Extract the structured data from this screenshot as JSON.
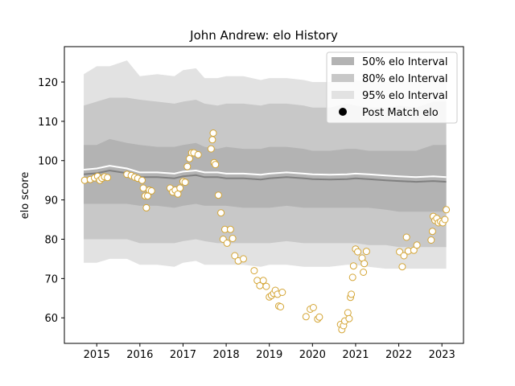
{
  "chart_data": {
    "type": "line",
    "title": "John Andrew: elo History",
    "xlabel": "",
    "ylabel": "elo score",
    "xlim": [
      2014.25,
      2023.5
    ],
    "ylim": [
      53.5,
      129
    ],
    "xticks": [
      2015,
      2016,
      2017,
      2018,
      2019,
      2020,
      2021,
      2022,
      2023
    ],
    "yticks": [
      60,
      70,
      80,
      90,
      100,
      110,
      120
    ],
    "grid": false,
    "legend_position": "top-right",
    "legend": [
      {
        "label": "50% elo Interval",
        "kind": "band",
        "color": "#b3b3b3"
      },
      {
        "label": "80% elo Interval",
        "kind": "band",
        "color": "#c8c8c8"
      },
      {
        "label": "95% elo Interval",
        "kind": "band",
        "color": "#e2e2e2"
      },
      {
        "label": "Post Match elo",
        "kind": "marker",
        "color": "#000000"
      }
    ],
    "colors": {
      "band50": "#b3b3b3",
      "band80": "#c8c8c8",
      "band95": "#e2e2e2",
      "mean_line": "#808080",
      "overlay_line": "#ffffff",
      "marker_edge": "#d4a535",
      "marker_face": "#ffffff"
    },
    "bands": {
      "x": [
        2014.7,
        2015.0,
        2015.3,
        2015.7,
        2016.0,
        2016.4,
        2016.8,
        2017.0,
        2017.3,
        2017.5,
        2017.8,
        2018.0,
        2018.4,
        2018.8,
        2019.0,
        2019.4,
        2019.8,
        2020.0,
        2020.4,
        2020.8,
        2021.0,
        2021.3,
        2021.7,
        2022.0,
        2022.4,
        2022.8,
        2023.1
      ],
      "mean": [
        96.5,
        96.8,
        97.5,
        96.8,
        95.8,
        95.8,
        95.5,
        96.0,
        96.3,
        95.8,
        95.8,
        95.5,
        95.5,
        95.2,
        95.5,
        95.8,
        95.5,
        95.3,
        95.2,
        95.3,
        95.5,
        95.3,
        95.0,
        94.8,
        94.6,
        94.8,
        94.6
      ],
      "p50": [
        [
          89,
          104
        ],
        [
          89,
          104
        ],
        [
          89,
          105.5
        ],
        [
          89,
          104.5
        ],
        [
          88.5,
          104
        ],
        [
          88.5,
          103.5
        ],
        [
          88,
          103.5
        ],
        [
          88.5,
          104
        ],
        [
          89,
          104.5
        ],
        [
          88.5,
          103.5
        ],
        [
          88.5,
          103
        ],
        [
          88.5,
          103.5
        ],
        [
          88,
          103
        ],
        [
          88,
          103
        ],
        [
          88,
          103.5
        ],
        [
          88.5,
          103.5
        ],
        [
          88,
          103
        ],
        [
          88,
          102.5
        ],
        [
          88,
          102.5
        ],
        [
          88,
          103
        ],
        [
          88,
          103
        ],
        [
          88,
          102.5
        ],
        [
          87.5,
          102.5
        ],
        [
          87,
          102.5
        ],
        [
          87,
          102.5
        ],
        [
          87,
          104
        ],
        [
          87,
          104
        ]
      ],
      "p80": [
        [
          80,
          114
        ],
        [
          80,
          115
        ],
        [
          80,
          116
        ],
        [
          80,
          116
        ],
        [
          79,
          115.5
        ],
        [
          79,
          115
        ],
        [
          79,
          114.5
        ],
        [
          79.5,
          115
        ],
        [
          80,
          115.5
        ],
        [
          79.5,
          114.5
        ],
        [
          79,
          114
        ],
        [
          79,
          114.5
        ],
        [
          79,
          114.5
        ],
        [
          79,
          114
        ],
        [
          79,
          114.5
        ],
        [
          79.5,
          114.5
        ],
        [
          79,
          114
        ],
        [
          79,
          113.5
        ],
        [
          79,
          113.5
        ],
        [
          79,
          114.5
        ],
        [
          79,
          114
        ],
        [
          78.5,
          113.5
        ],
        [
          78.5,
          113.5
        ],
        [
          78,
          114
        ],
        [
          78,
          113.5
        ],
        [
          78,
          115
        ],
        [
          78,
          115
        ]
      ],
      "p95": [
        [
          74,
          122
        ],
        [
          74,
          124
        ],
        [
          75,
          124
        ],
        [
          75,
          125.5
        ],
        [
          73.5,
          121.5
        ],
        [
          73.5,
          122
        ],
        [
          73,
          121.5
        ],
        [
          74,
          123
        ],
        [
          74.5,
          123.5
        ],
        [
          73.5,
          121
        ],
        [
          73.5,
          121
        ],
        [
          73.5,
          121.5
        ],
        [
          73.5,
          121.5
        ],
        [
          73,
          120.5
        ],
        [
          73.5,
          121
        ],
        [
          73.5,
          121
        ],
        [
          73,
          120.5
        ],
        [
          73,
          120
        ],
        [
          73,
          120
        ],
        [
          73.5,
          120.5
        ],
        [
          73.5,
          120.5
        ],
        [
          73,
          120
        ],
        [
          72.5,
          120
        ],
        [
          72.5,
          120.5
        ],
        [
          72.5,
          120
        ],
        [
          72.5,
          121.5
        ],
        [
          72.5,
          122
        ]
      ]
    },
    "points": [
      {
        "x": 2014.72,
        "y": 95.0
      },
      {
        "x": 2014.85,
        "y": 95.2
      },
      {
        "x": 2014.95,
        "y": 95.6
      },
      {
        "x": 2015.02,
        "y": 96.0
      },
      {
        "x": 2015.07,
        "y": 95.0
      },
      {
        "x": 2015.12,
        "y": 95.5
      },
      {
        "x": 2015.18,
        "y": 95.9
      },
      {
        "x": 2015.25,
        "y": 95.7
      },
      {
        "x": 2015.7,
        "y": 96.5
      },
      {
        "x": 2015.8,
        "y": 96.2
      },
      {
        "x": 2015.88,
        "y": 95.8
      },
      {
        "x": 2015.95,
        "y": 95.5
      },
      {
        "x": 2016.05,
        "y": 95.0
      },
      {
        "x": 2016.08,
        "y": 93.0
      },
      {
        "x": 2016.12,
        "y": 91.0
      },
      {
        "x": 2016.15,
        "y": 88.0
      },
      {
        "x": 2016.18,
        "y": 91.0
      },
      {
        "x": 2016.22,
        "y": 92.5
      },
      {
        "x": 2016.27,
        "y": 92.3
      },
      {
        "x": 2016.7,
        "y": 93.0
      },
      {
        "x": 2016.76,
        "y": 92.0
      },
      {
        "x": 2016.82,
        "y": 92.5
      },
      {
        "x": 2016.88,
        "y": 91.5
      },
      {
        "x": 2016.93,
        "y": 93.0
      },
      {
        "x": 2017.0,
        "y": 94.7
      },
      {
        "x": 2017.05,
        "y": 94.5
      },
      {
        "x": 2017.1,
        "y": 98.5
      },
      {
        "x": 2017.15,
        "y": 100.5
      },
      {
        "x": 2017.2,
        "y": 102.0
      },
      {
        "x": 2017.25,
        "y": 102.0
      },
      {
        "x": 2017.35,
        "y": 101.5
      },
      {
        "x": 2017.65,
        "y": 103.0
      },
      {
        "x": 2017.68,
        "y": 105.3
      },
      {
        "x": 2017.7,
        "y": 107.0
      },
      {
        "x": 2017.72,
        "y": 99.5
      },
      {
        "x": 2017.75,
        "y": 99.0
      },
      {
        "x": 2017.82,
        "y": 91.2
      },
      {
        "x": 2017.88,
        "y": 86.7
      },
      {
        "x": 2017.93,
        "y": 80.0
      },
      {
        "x": 2017.97,
        "y": 82.5
      },
      {
        "x": 2018.02,
        "y": 79.0
      },
      {
        "x": 2018.1,
        "y": 82.5
      },
      {
        "x": 2018.15,
        "y": 80.2
      },
      {
        "x": 2018.2,
        "y": 75.8
      },
      {
        "x": 2018.28,
        "y": 74.5
      },
      {
        "x": 2018.4,
        "y": 75.0
      },
      {
        "x": 2018.65,
        "y": 72.0
      },
      {
        "x": 2018.72,
        "y": 69.5
      },
      {
        "x": 2018.78,
        "y": 68.2
      },
      {
        "x": 2018.86,
        "y": 69.5
      },
      {
        "x": 2018.93,
        "y": 68.0
      },
      {
        "x": 2019.0,
        "y": 65.3
      },
      {
        "x": 2019.05,
        "y": 65.7
      },
      {
        "x": 2019.1,
        "y": 66.2
      },
      {
        "x": 2019.14,
        "y": 67.0
      },
      {
        "x": 2019.19,
        "y": 66.0
      },
      {
        "x": 2019.22,
        "y": 63.0
      },
      {
        "x": 2019.26,
        "y": 62.8
      },
      {
        "x": 2019.3,
        "y": 66.5
      },
      {
        "x": 2019.85,
        "y": 60.3
      },
      {
        "x": 2019.95,
        "y": 62.2
      },
      {
        "x": 2020.02,
        "y": 62.6
      },
      {
        "x": 2020.12,
        "y": 59.7
      },
      {
        "x": 2020.16,
        "y": 60.2
      },
      {
        "x": 2020.65,
        "y": 58.3
      },
      {
        "x": 2020.68,
        "y": 57.0
      },
      {
        "x": 2020.72,
        "y": 58.0
      },
      {
        "x": 2020.75,
        "y": 59.2
      },
      {
        "x": 2020.82,
        "y": 61.3
      },
      {
        "x": 2020.85,
        "y": 59.8
      },
      {
        "x": 2020.88,
        "y": 65.2
      },
      {
        "x": 2020.9,
        "y": 66.0
      },
      {
        "x": 2020.93,
        "y": 70.3
      },
      {
        "x": 2020.95,
        "y": 73.2
      },
      {
        "x": 2021.0,
        "y": 77.5
      },
      {
        "x": 2021.05,
        "y": 76.8
      },
      {
        "x": 2021.15,
        "y": 75.2
      },
      {
        "x": 2021.18,
        "y": 71.6
      },
      {
        "x": 2021.2,
        "y": 73.8
      },
      {
        "x": 2021.25,
        "y": 76.9
      },
      {
        "x": 2022.02,
        "y": 76.8
      },
      {
        "x": 2022.08,
        "y": 73.0
      },
      {
        "x": 2022.12,
        "y": 75.8
      },
      {
        "x": 2022.18,
        "y": 80.5
      },
      {
        "x": 2022.22,
        "y": 77.0
      },
      {
        "x": 2022.35,
        "y": 77.2
      },
      {
        "x": 2022.42,
        "y": 78.5
      },
      {
        "x": 2022.75,
        "y": 79.8
      },
      {
        "x": 2022.78,
        "y": 82.0
      },
      {
        "x": 2022.8,
        "y": 85.8
      },
      {
        "x": 2022.84,
        "y": 84.8
      },
      {
        "x": 2022.88,
        "y": 85.3
      },
      {
        "x": 2022.92,
        "y": 84.2
      },
      {
        "x": 2022.97,
        "y": 84.5
      },
      {
        "x": 2023.02,
        "y": 84.2
      },
      {
        "x": 2023.07,
        "y": 85.0
      },
      {
        "x": 2023.1,
        "y": 87.5
      }
    ]
  }
}
